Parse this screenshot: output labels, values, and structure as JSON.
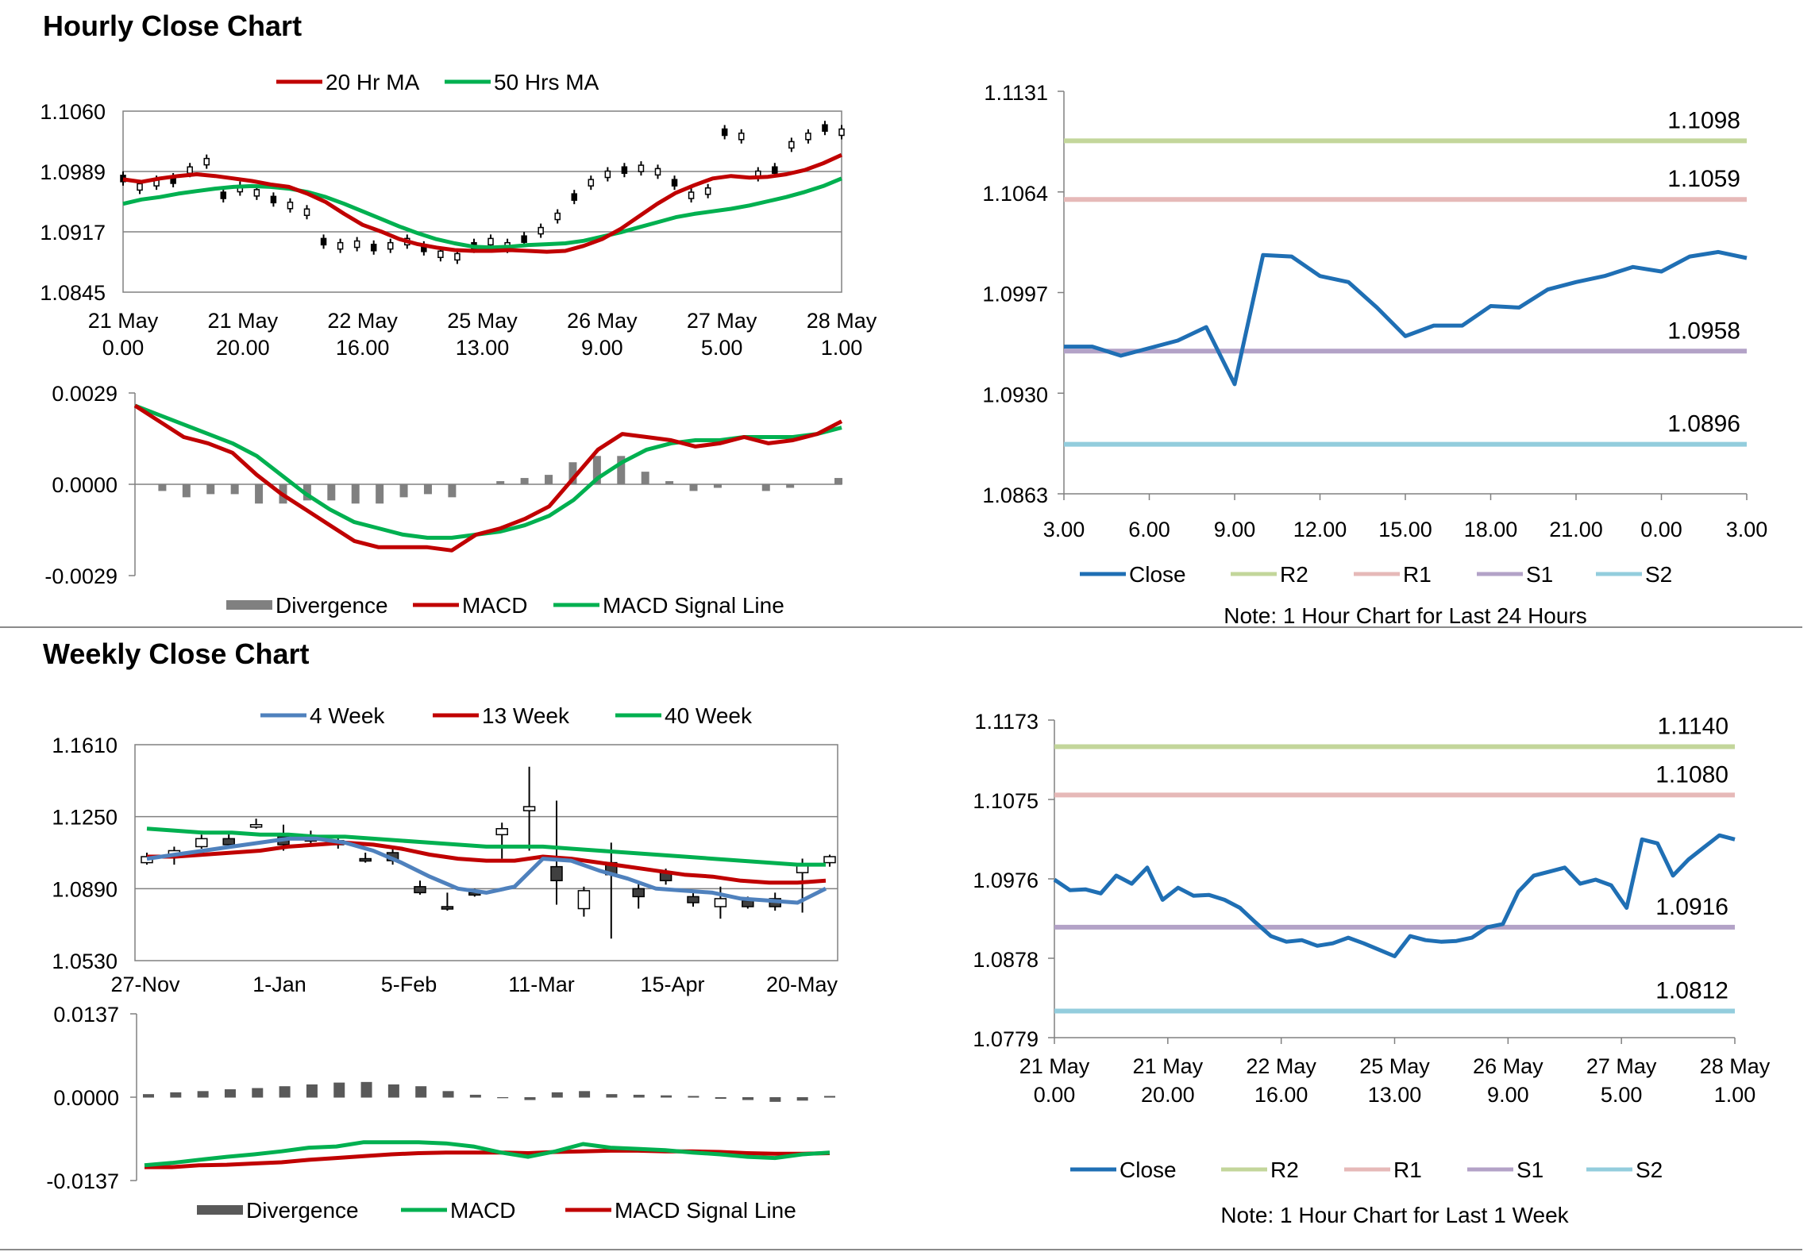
{
  "sections": {
    "hourly_title": "Hourly Close Chart",
    "weekly_title": "Weekly Close Chart"
  },
  "colors": {
    "ma20": "#c00000",
    "ma50": "#00b050",
    "close": "#1f6fb4",
    "r2": "#c3d69b",
    "r1": "#e6b9b8",
    "s1": "#b3a2c7",
    "s2": "#93cddd",
    "w4": "#4f81bd",
    "w13": "#c00000",
    "w40": "#00b050",
    "divergence": "#808080"
  },
  "chart_data": [
    {
      "id": "hourly_price",
      "type": "line",
      "legend": [
        "20 Hr MA",
        "50 Hrs MA"
      ],
      "y_ticks": [
        "1.1060",
        "1.0989",
        "1.0917",
        "1.0845"
      ],
      "ylim": [
        1.0845,
        1.106
      ],
      "x_ticks": [
        [
          "21 May",
          "0.00"
        ],
        [
          "21 May",
          "20.00"
        ],
        [
          "22 May",
          "16.00"
        ],
        [
          "25 May",
          "13.00"
        ],
        [
          "26 May",
          "9.00"
        ],
        [
          "27 May",
          "5.00"
        ],
        [
          "28 May",
          "1.00"
        ]
      ],
      "series": [
        {
          "name": "20 Hr MA",
          "values": [
            1.0979,
            1.0976,
            1.098,
            1.0983,
            1.0985,
            1.0983,
            1.098,
            1.0977,
            1.0973,
            1.097,
            1.0962,
            1.0952,
            1.0938,
            1.0925,
            1.0917,
            1.0908,
            1.0902,
            1.0898,
            1.0895,
            1.0894,
            1.0894,
            1.0895,
            1.0894,
            1.0893,
            1.0894,
            1.09,
            1.0908,
            1.092,
            1.0935,
            1.095,
            1.0963,
            1.0972,
            1.098,
            1.0983,
            1.0981,
            1.0982,
            1.0985,
            1.099,
            1.0998,
            1.1008
          ]
        },
        {
          "name": "50 Hrs MA",
          "values": [
            1.095,
            1.0955,
            1.0958,
            1.0962,
            1.0965,
            1.0968,
            1.097,
            1.0971,
            1.097,
            1.0968,
            1.0964,
            1.0958,
            1.095,
            1.0941,
            1.0932,
            1.0923,
            1.0915,
            1.0908,
            1.0903,
            1.0899,
            1.0898,
            1.0899,
            1.0901,
            1.0902,
            1.0903,
            1.0906,
            1.0911,
            1.0916,
            1.0922,
            1.0928,
            1.0934,
            1.0938,
            1.0941,
            1.0944,
            1.0948,
            1.0953,
            1.0958,
            1.0964,
            1.0971,
            1.098
          ]
        }
      ],
      "candles": [
        1.098,
        1.097,
        1.0975,
        1.0978,
        1.099,
        1.1,
        1.096,
        1.0968,
        1.0963,
        1.0955,
        1.0948,
        1.094,
        1.0905,
        1.09,
        1.0902,
        1.0898,
        1.09,
        1.0905,
        1.0897,
        1.089,
        1.0887,
        1.09,
        1.0905,
        1.09,
        1.0908,
        1.0918,
        1.0935,
        1.0958,
        1.0975,
        1.0985,
        1.099,
        1.0992,
        1.0988,
        1.0975,
        1.096,
        1.0965,
        1.1035,
        1.103,
        1.0985,
        1.099,
        1.102,
        1.103,
        1.104,
        1.1035
      ]
    },
    {
      "id": "hourly_macd",
      "type": "line",
      "legend": [
        "Divergence",
        "MACD",
        "MACD Signal Line"
      ],
      "y_ticks": [
        "0.0029",
        "0.0000",
        "-0.0029"
      ],
      "ylim": [
        -0.0029,
        0.0029
      ],
      "series": [
        {
          "name": "MACD",
          "values": [
            0.0025,
            0.002,
            0.0015,
            0.0013,
            0.001,
            0.0003,
            -0.0003,
            -0.0008,
            -0.0013,
            -0.0018,
            -0.002,
            -0.002,
            -0.002,
            -0.0021,
            -0.0016,
            -0.0014,
            -0.0011,
            -0.0007,
            0.0002,
            0.0011,
            0.0016,
            0.0015,
            0.0014,
            0.0012,
            0.0013,
            0.0015,
            0.0013,
            0.0014,
            0.0016,
            0.002
          ]
        },
        {
          "name": "MACD Signal Line",
          "values": [
            0.0025,
            0.0022,
            0.0019,
            0.0016,
            0.0013,
            0.0009,
            0.0003,
            -0.0003,
            -0.0008,
            -0.0012,
            -0.0014,
            -0.0016,
            -0.0017,
            -0.0017,
            -0.0016,
            -0.0015,
            -0.0013,
            -0.001,
            -0.0005,
            0.0002,
            0.0007,
            0.0011,
            0.0013,
            0.0014,
            0.0014,
            0.0015,
            0.0015,
            0.0015,
            0.0016,
            0.0018
          ]
        },
        {
          "name": "Divergence",
          "values": [
            0.0,
            -0.0002,
            -0.0004,
            -0.0003,
            -0.0003,
            -0.0006,
            -0.0006,
            -0.0005,
            -0.0005,
            -0.0006,
            -0.0006,
            -0.0004,
            -0.0003,
            -0.0004,
            0.0,
            0.0001,
            0.0002,
            0.0003,
            0.0007,
            0.0009,
            0.0009,
            0.0004,
            0.0001,
            -0.0002,
            -0.0001,
            0.0,
            -0.0002,
            -0.0001,
            0.0,
            0.0002
          ]
        }
      ]
    },
    {
      "id": "hourly_close",
      "type": "line",
      "y_ticks": [
        "1.1131",
        "1.1064",
        "1.0997",
        "1.0930",
        "1.0863"
      ],
      "ylim": [
        1.0863,
        1.1131
      ],
      "x_ticks": [
        "3.00",
        "6.00",
        "9.00",
        "12.00",
        "15.00",
        "18.00",
        "21.00",
        "0.00",
        "3.00"
      ],
      "legend": [
        "Close",
        "R2",
        "R1",
        "S1",
        "S2"
      ],
      "levels": {
        "R2": 1.1098,
        "R1": 1.1059,
        "S1": 1.0958,
        "S2": 1.0896
      },
      "level_labels": {
        "R2": "1.1098",
        "R1": "1.1059",
        "S1": "1.0958",
        "S2": "1.0896"
      },
      "series": [
        {
          "name": "Close",
          "values": [
            1.0961,
            1.0961,
            1.0955,
            1.096,
            1.0965,
            1.0974,
            1.0936,
            1.1022,
            1.1021,
            1.1008,
            1.1004,
            1.0987,
            1.0968,
            1.0975,
            1.0975,
            1.0988,
            1.0987,
            1.0999,
            1.1004,
            1.1008,
            1.1014,
            1.1011,
            1.1021,
            1.1024,
            1.102
          ]
        }
      ],
      "note": "Note: 1 Hour Chart for Last 24 Hours"
    },
    {
      "id": "weekly_price",
      "type": "line",
      "legend": [
        "4 Week",
        "13 Week",
        "40 Week"
      ],
      "y_ticks": [
        "1.1610",
        "1.1250",
        "1.0890",
        "1.0530"
      ],
      "ylim": [
        1.053,
        1.161
      ],
      "x_ticks": [
        "27-Nov",
        "1-Jan",
        "5-Feb",
        "11-Mar",
        "15-Apr",
        "20-May"
      ],
      "series": [
        {
          "name": "4 Week",
          "values": [
            1.104,
            1.106,
            1.108,
            1.11,
            1.112,
            1.114,
            1.114,
            1.112,
            1.108,
            1.102,
            1.095,
            1.089,
            1.087,
            1.09,
            1.104,
            1.103,
            1.098,
            1.094,
            1.089,
            1.088,
            1.087,
            1.084,
            1.083,
            1.082,
            1.089
          ]
        },
        {
          "name": "13 Week",
          "values": [
            1.105,
            1.105,
            1.106,
            1.107,
            1.108,
            1.11,
            1.111,
            1.112,
            1.111,
            1.109,
            1.106,
            1.104,
            1.103,
            1.103,
            1.105,
            1.104,
            1.102,
            1.1,
            1.098,
            1.096,
            1.095,
            1.093,
            1.092,
            1.092,
            1.093
          ]
        },
        {
          "name": "40 Week",
          "values": [
            1.119,
            1.118,
            1.117,
            1.117,
            1.116,
            1.116,
            1.115,
            1.115,
            1.114,
            1.113,
            1.112,
            1.111,
            1.11,
            1.11,
            1.11,
            1.109,
            1.108,
            1.107,
            1.106,
            1.105,
            1.104,
            1.103,
            1.102,
            1.101,
            1.101
          ]
        }
      ],
      "candles": [
        {
          "o": 1.102,
          "c": 1.105,
          "h": 1.107,
          "l": 1.101
        },
        {
          "o": 1.106,
          "c": 1.108,
          "h": 1.11,
          "l": 1.101
        },
        {
          "o": 1.11,
          "c": 1.114,
          "h": 1.116,
          "l": 1.109
        },
        {
          "o": 1.114,
          "c": 1.111,
          "h": 1.117,
          "l": 1.11
        },
        {
          "o": 1.12,
          "c": 1.121,
          "h": 1.124,
          "l": 1.119
        },
        {
          "o": 1.115,
          "c": 1.111,
          "h": 1.121,
          "l": 1.108
        },
        {
          "o": 1.114,
          "c": 1.113,
          "h": 1.118,
          "l": 1.111
        },
        {
          "o": 1.113,
          "c": 1.111,
          "h": 1.115,
          "l": 1.109
        },
        {
          "o": 1.104,
          "c": 1.103,
          "h": 1.107,
          "l": 1.102
        },
        {
          "o": 1.107,
          "c": 1.103,
          "h": 1.11,
          "l": 1.101
        },
        {
          "o": 1.09,
          "c": 1.087,
          "h": 1.093,
          "l": 1.086
        },
        {
          "o": 1.08,
          "c": 1.079,
          "h": 1.087,
          "l": 1.078
        },
        {
          "o": 1.087,
          "c": 1.086,
          "h": 1.089,
          "l": 1.085
        },
        {
          "o": 1.116,
          "c": 1.119,
          "h": 1.122,
          "l": 1.104
        },
        {
          "o": 1.128,
          "c": 1.13,
          "h": 1.15,
          "l": 1.108
        },
        {
          "o": 1.1,
          "c": 1.093,
          "h": 1.133,
          "l": 1.081
        },
        {
          "o": 1.079,
          "c": 1.088,
          "h": 1.09,
          "l": 1.075
        },
        {
          "o": 1.102,
          "c": 1.096,
          "h": 1.112,
          "l": 1.064
        },
        {
          "o": 1.089,
          "c": 1.085,
          "h": 1.092,
          "l": 1.079
        },
        {
          "o": 1.097,
          "c": 1.093,
          "h": 1.099,
          "l": 1.091
        },
        {
          "o": 1.085,
          "c": 1.082,
          "h": 1.088,
          "l": 1.08
        },
        {
          "o": 1.08,
          "c": 1.084,
          "h": 1.09,
          "l": 1.074
        },
        {
          "o": 1.083,
          "c": 1.08,
          "h": 1.085,
          "l": 1.079
        },
        {
          "o": 1.084,
          "c": 1.08,
          "h": 1.087,
          "l": 1.078
        },
        {
          "o": 1.097,
          "c": 1.101,
          "h": 1.104,
          "l": 1.077
        },
        {
          "o": 1.102,
          "c": 1.105,
          "h": 1.106,
          "l": 1.1
        }
      ]
    },
    {
      "id": "weekly_macd",
      "type": "line",
      "legend": [
        "Divergence",
        "MACD",
        "MACD Signal Line"
      ],
      "y_ticks": [
        "0.0137",
        "0.0000",
        "-0.0137"
      ],
      "ylim": [
        -0.0137,
        0.0137
      ],
      "series": [
        {
          "name": "MACD",
          "values": [
            -0.0112,
            -0.0108,
            -0.0103,
            -0.0098,
            -0.0094,
            -0.0089,
            -0.0083,
            -0.0081,
            -0.0074,
            -0.0074,
            -0.0074,
            -0.0076,
            -0.0081,
            -0.0091,
            -0.0098,
            -0.0089,
            -0.0077,
            -0.0083,
            -0.0085,
            -0.0087,
            -0.0091,
            -0.0094,
            -0.0098,
            -0.01,
            -0.0094,
            -0.0091
          ]
        },
        {
          "name": "MACD Signal Line",
          "values": [
            -0.0115,
            -0.0115,
            -0.0112,
            -0.0111,
            -0.0109,
            -0.0107,
            -0.0103,
            -0.01,
            -0.0097,
            -0.0094,
            -0.0092,
            -0.0091,
            -0.0091,
            -0.0091,
            -0.0092,
            -0.009,
            -0.0089,
            -0.0088,
            -0.0088,
            -0.0089,
            -0.0089,
            -0.009,
            -0.0092,
            -0.0093,
            -0.0093,
            -0.0092
          ]
        },
        {
          "name": "Divergence",
          "values": [
            0.0005,
            0.0008,
            0.001,
            0.0013,
            0.0015,
            0.0018,
            0.0021,
            0.0024,
            0.0025,
            0.0021,
            0.0018,
            0.001,
            0.0004,
            -0.0001,
            -0.0004,
            0.0008,
            0.001,
            0.0005,
            0.0004,
            0.0003,
            0.0002,
            -0.0002,
            -0.0004,
            -0.0007,
            -0.0005,
            0.0002
          ]
        }
      ]
    },
    {
      "id": "weekly_close",
      "type": "line",
      "y_ticks": [
        "1.1173",
        "1.1075",
        "1.0976",
        "1.0878",
        "1.0779"
      ],
      "ylim": [
        1.0779,
        1.1173
      ],
      "x_ticks": [
        [
          "21 May",
          "0.00"
        ],
        [
          "21 May",
          "20.00"
        ],
        [
          "22 May",
          "16.00"
        ],
        [
          "25 May",
          "13.00"
        ],
        [
          "26 May",
          "9.00"
        ],
        [
          "27 May",
          "5.00"
        ],
        [
          "28 May",
          "1.00"
        ]
      ],
      "legend": [
        "Close",
        "R2",
        "R1",
        "S1",
        "S2"
      ],
      "levels": {
        "R2": 1.114,
        "R1": 1.108,
        "S1": 1.0916,
        "S2": 1.0812
      },
      "level_labels": {
        "R2": "1.1140",
        "R1": "1.1080",
        "S1": "1.0916",
        "S2": "1.0812"
      },
      "series": [
        {
          "name": "Close",
          "values": [
            1.0975,
            1.0962,
            1.0963,
            1.0958,
            1.098,
            1.097,
            1.099,
            1.095,
            1.0965,
            1.0955,
            1.0956,
            1.095,
            1.094,
            1.0922,
            1.0905,
            1.0898,
            1.09,
            1.0893,
            1.0896,
            1.0903,
            1.0896,
            1.0888,
            1.088,
            1.0905,
            1.09,
            1.0898,
            1.0899,
            1.0903,
            1.0916,
            1.092,
            1.096,
            1.098,
            1.0985,
            1.099,
            1.097,
            1.0975,
            1.0968,
            1.094,
            1.1025,
            1.102,
            1.098,
            1.1,
            1.1015,
            1.103,
            1.1025
          ]
        }
      ],
      "note": "Note: 1 Hour Chart for Last 1 Week"
    }
  ]
}
